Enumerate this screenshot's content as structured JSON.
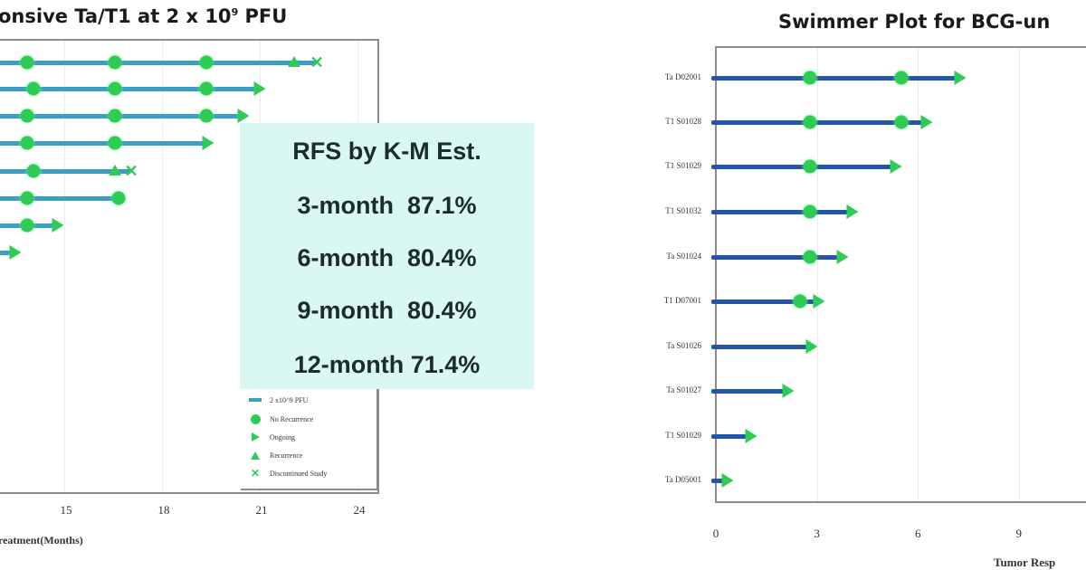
{
  "left_panel": {
    "title": "onsive Ta/T1 at 2 x 10",
    "title_sup": "9",
    "title_suffix": " PFU",
    "x_ticks": [
      "15",
      "18",
      "21",
      "24"
    ],
    "x_axis_title": "reatment(Months)",
    "bar_color": "#3a9fc4",
    "marker_color": "#2ecc55",
    "legend": [
      {
        "symbol": "bar",
        "label": "2 x10^9 PFU"
      },
      {
        "symbol": "circle",
        "label": "No Recurrence"
      },
      {
        "symbol": "arrow",
        "label": "Ongoing"
      },
      {
        "symbol": "triangle",
        "label": "Recurrence"
      },
      {
        "symbol": "x",
        "label": "Discontinued Study"
      }
    ]
  },
  "rfs_box": {
    "heading": "RFS by K-M Est.",
    "rows": [
      {
        "label": "3-month",
        "value": "87.1%"
      },
      {
        "label": "6-month",
        "value": "80.4%"
      },
      {
        "label": "9-month",
        "value": "80.4%"
      },
      {
        "label": "12-month",
        "value": "71.4%"
      }
    ],
    "lines": [
      "3-month  87.1%",
      "6-month  80.4%",
      "9-month  80.4%",
      "12-month 71.4%"
    ],
    "background": "#d9f7f3"
  },
  "right_panel": {
    "title": "Swimmer Plot for BCG-un",
    "x_ticks": [
      "0",
      "3",
      "6",
      "9"
    ],
    "x_axis_title": "Tumor Resp",
    "bar_color": "#2456a8",
    "marker_color": "#2ecc55",
    "patients": [
      "Ta D02001",
      "T1 S01028",
      "T1 S01029",
      "T1 S01032",
      "Ta S01024",
      "T1 D07001",
      "Ta S01026",
      "Ta S01027",
      "T1 S01029",
      "Ta D05001"
    ]
  },
  "chart_data": [
    {
      "type": "swimmer",
      "title": "...onsive Ta/T1 at 2 x 10^9 PFU",
      "xlabel": "...reatment(Months)",
      "x_ticks": [
        15,
        18,
        21,
        24
      ],
      "xlim_visible": [
        12.5,
        24.5
      ],
      "grid": true,
      "legend_position": "lower right",
      "legend": [
        "2 x10^9 PFU",
        "No Recurrence",
        "Ongoing",
        "Recurrence",
        "Discontinued Study"
      ],
      "rows": [
        {
          "end": 22.7,
          "no_recurrence": [
            13.8,
            16.5,
            19.3
          ],
          "recurrence": 22.0,
          "discontinued": 22.7
        },
        {
          "end": 20.9,
          "no_recurrence": [
            14.0,
            16.5,
            19.3
          ],
          "ongoing": 20.9
        },
        {
          "end": 20.4,
          "no_recurrence": [
            13.8,
            16.5,
            19.3
          ],
          "ongoing": 20.4
        },
        {
          "end": 19.3,
          "no_recurrence": [
            13.8,
            16.5
          ],
          "ongoing": 19.3
        },
        {
          "end": 17.0,
          "no_recurrence": [
            14.0
          ],
          "recurrence": 16.5,
          "discontinued": 17.0
        },
        {
          "end": 16.7,
          "no_recurrence": [
            13.8,
            16.6
          ]
        },
        {
          "end": 14.7,
          "no_recurrence": [
            13.8
          ],
          "ongoing": 14.7
        },
        {
          "end": 13.4,
          "ongoing": 13.4
        }
      ],
      "annotation": {
        "heading": "RFS by K-M Est.",
        "values": {
          "3-month": 87.1,
          "6-month": 80.4,
          "9-month": 80.4,
          "12-month": 71.4
        },
        "unit": "%"
      }
    },
    {
      "type": "swimmer",
      "title": "Swimmer Plot for BCG-un...",
      "xlabel": "Tumor Resp...",
      "x_ticks": [
        0,
        3,
        6,
        9
      ],
      "xlim_visible": [
        0,
        11
      ],
      "grid": true,
      "categories": [
        "Ta D02001",
        "T1 S01028",
        "T1 S01029",
        "T1 S01032",
        "Ta S01024",
        "T1 D07001",
        "Ta S01026",
        "Ta S01027",
        "T1 S01029",
        "Ta D05001"
      ],
      "rows": [
        {
          "patient": "Ta D02001",
          "end": 7.2,
          "no_recurrence": [
            2.8,
            5.5
          ],
          "ongoing": 7.2
        },
        {
          "patient": "T1 S01028",
          "end": 6.2,
          "no_recurrence": [
            2.8,
            5.5
          ],
          "ongoing": 6.2
        },
        {
          "patient": "T1 S01029",
          "end": 5.3,
          "no_recurrence": [
            2.8
          ],
          "ongoing": 5.3
        },
        {
          "patient": "T1 S01032",
          "end": 4.0,
          "no_recurrence": [
            2.8
          ],
          "ongoing": 4.0
        },
        {
          "patient": "Ta S01024",
          "end": 3.7,
          "no_recurrence": [
            2.8
          ],
          "ongoing": 3.7
        },
        {
          "patient": "T1 D07001",
          "end": 3.0,
          "no_recurrence": [
            2.5
          ],
          "ongoing": 3.0
        },
        {
          "patient": "Ta S01026",
          "end": 2.8,
          "ongoing": 2.8
        },
        {
          "patient": "Ta S01027",
          "end": 2.1,
          "ongoing": 2.1
        },
        {
          "patient": "T1 S01029",
          "end": 1.0,
          "ongoing": 1.0
        },
        {
          "patient": "Ta D05001",
          "end": 0.3,
          "ongoing": 0.3
        }
      ]
    }
  ]
}
